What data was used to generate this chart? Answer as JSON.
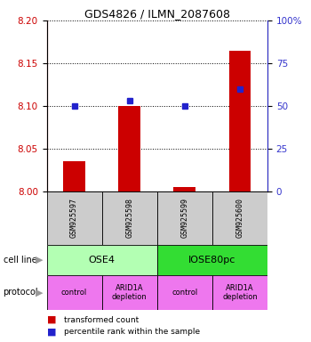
{
  "title": "GDS4826 / ILMN_2087608",
  "samples": [
    "GSM925597",
    "GSM925598",
    "GSM925599",
    "GSM925600"
  ],
  "red_values": [
    8.035,
    8.1,
    8.005,
    8.165
  ],
  "blue_values": [
    50,
    53,
    50,
    60
  ],
  "ylim_left": [
    8.0,
    8.2
  ],
  "ylim_right": [
    0,
    100
  ],
  "yticks_left": [
    8.0,
    8.05,
    8.1,
    8.15,
    8.2
  ],
  "yticks_right": [
    0,
    25,
    50,
    75,
    100
  ],
  "ytick_labels_right": [
    "0",
    "25",
    "50",
    "75",
    "100%"
  ],
  "cell_line_labels": [
    "OSE4",
    "IOSE80pc"
  ],
  "cell_line_spans": [
    [
      0,
      1
    ],
    [
      2,
      3
    ]
  ],
  "cell_line_color_ose4": "#b3ffb3",
  "cell_line_color_iose": "#33dd33",
  "protocol_labels": [
    "control",
    "ARID1A\ndepletion",
    "control",
    "ARID1A\ndepletion"
  ],
  "protocol_color": "#ee77ee",
  "sample_box_color": "#cccccc",
  "bar_color": "#cc0000",
  "dot_color": "#2222cc",
  "left_tick_color": "#cc0000",
  "right_tick_color": "#3333cc",
  "title_fontsize": 9,
  "bar_width": 0.4
}
